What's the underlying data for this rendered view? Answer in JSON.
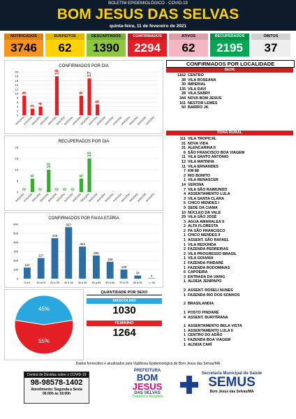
{
  "header": {
    "kicker": "BOLETIM EPIDEMIOLÓGICO - COVID-19",
    "title": "BOM JESUS DAS SELVAS",
    "date": "quinta-feira, 11 de fevereiro de 2021"
  },
  "stats": [
    {
      "label": "NOTIFICADOS",
      "value": "3746",
      "color": "#f7941d",
      "text": "#000"
    },
    {
      "label": "SUSPEITOS",
      "value": "62",
      "color": "#ffd200",
      "text": "#000"
    },
    {
      "label": "DESCARTADOS",
      "value": "1390",
      "color": "#8dc63f",
      "text": "#000"
    },
    {
      "label": "CONFIRMADOS",
      "value": "2294",
      "color": "#e31e24",
      "text": "#fff"
    },
    {
      "label": "ATIVOS",
      "value": "62",
      "color": "#f4b6c2",
      "text": "#000"
    },
    {
      "label": "RECUPERADOS",
      "value": "2195",
      "color": "#00a651",
      "text": "#fff"
    },
    {
      "label": "ÓBITOS",
      "value": "37",
      "color": "#eeeeee",
      "text": "#000"
    }
  ],
  "chart_data": [
    {
      "type": "bar",
      "title": "CONFIRMADOS POR DIA",
      "color": "#e31e24",
      "categories": [
        "26/01/2021",
        "27/01/2021",
        "28/01/2021",
        "29/01/2021",
        "30/01/2021",
        "31/01/2021",
        "01/02/2021",
        "02/02/2021",
        "03/02/2021",
        "04/02/2021",
        "05/02/2021",
        "06/02/2021",
        "07/02/2021",
        "08/02/2021",
        "09/02/2021",
        "10/02/2021",
        "11/02/2021"
      ],
      "values": [
        9,
        3,
        4,
        0,
        18,
        0,
        0,
        9,
        17,
        5,
        0,
        0,
        0,
        0,
        0,
        0,
        0
      ],
      "value_labels": [
        "9",
        "3",
        "4",
        null,
        "18",
        null,
        null,
        "9",
        "17",
        "5",
        null,
        null,
        null,
        null,
        null,
        null,
        null
      ],
      "ylim": [
        0,
        20
      ],
      "yticks": [
        0,
        2,
        4,
        6,
        8,
        10,
        12,
        14,
        16,
        18,
        20
      ],
      "grid": true
    },
    {
      "type": "bar",
      "title": "RECUPERADOS POR DIA",
      "color": "#3aa935",
      "categories": [
        "26/01/2021",
        "27/01/2021",
        "28/01/2021",
        "29/01/2021",
        "30/01/2021",
        "31/01/2021",
        "01/02/2021",
        "02/02/2021",
        "03/02/2021",
        "04/02/2021",
        "05/02/2021",
        "06/02/2021",
        "07/02/2021",
        "08/02/2021",
        "09/02/2021",
        "10/02/2021",
        "11/02/2021"
      ],
      "values": [
        0,
        6,
        0,
        10,
        0,
        0,
        0,
        6,
        15,
        0,
        0,
        0,
        0,
        0,
        0,
        0,
        0
      ],
      "value_labels": [
        "0",
        "6",
        "0",
        "10",
        "0",
        "0",
        "0",
        "6",
        "15",
        null,
        null,
        null,
        null,
        null,
        null,
        null,
        null
      ],
      "ylim": [
        0,
        20
      ],
      "yticks": [
        0,
        5,
        10,
        15,
        20
      ],
      "grid": true
    },
    {
      "type": "bar",
      "title": "CONFIRMADOS POR FAIXA ETÁRIA",
      "color": "#2e6da4",
      "categories": [
        "0 a 9",
        "10 a 19",
        "20 a 29",
        "30 a 39",
        "40 a 49",
        "50 a 59",
        "60 a 69",
        "70 a 79",
        "80 a 89",
        ">= 90"
      ],
      "values": [
        122,
        227,
        445,
        567,
        353,
        255,
        186,
        100,
        34,
        4
      ],
      "ylim": [
        0,
        600
      ],
      "yticks": [
        0,
        100,
        200,
        300,
        400,
        500,
        600
      ],
      "grid": true
    },
    {
      "type": "pie",
      "values": [
        55,
        45
      ],
      "value_labels": [
        "55%",
        "45%"
      ],
      "colors": [
        "#e31e24",
        "#2aa7df"
      ]
    }
  ],
  "sex": {
    "title": "QUANTIDADE POR SEXO",
    "items": [
      {
        "label": "MASCULINO",
        "value": "1030",
        "color": "#2aa7df"
      },
      {
        "label": "FEMININO",
        "value": "1264",
        "color": "#e31e24"
      }
    ]
  },
  "locality": {
    "title": "CONFIRMADOS POR LOCALIDADE",
    "sede_title": "SEDE",
    "sede": [
      {
        "count": "1162",
        "name": "CENTRO"
      },
      {
        "count": "38",
        "name": "VILA ROSEANA"
      },
      {
        "count": "30",
        "name": "IMPERIAL"
      },
      {
        "count": "135",
        "name": "VILA DAVI"
      },
      {
        "count": "28",
        "name": "VILA SABRY"
      },
      {
        "count": "344",
        "name": "NOVA BOM JESUS"
      },
      {
        "count": "161",
        "name": "NESTOR LEMES"
      },
      {
        "count": "50",
        "name": "BAIRRO JK"
      }
    ],
    "rural_title": "ZONA RURAL",
    "rural": [
      [
        {
          "count": "111",
          "name": "VILA TROPICAL"
        },
        {
          "count": "31",
          "name": "NOVA VIDA"
        },
        {
          "count": "31",
          "name": "ALENCARINA II"
        },
        {
          "count": "6",
          "name": "SÃO FRANCISCO BOA VIAGEM"
        },
        {
          "count": "11",
          "name": "VILA SANTO ANTONIO"
        },
        {
          "count": "12",
          "name": "VILA MATINHA"
        },
        {
          "count": "11",
          "name": "VILA ERNANDES"
        },
        {
          "count": "7",
          "name": "KM 88"
        },
        {
          "count": "2",
          "name": "RIO BONITO"
        },
        {
          "count": "1",
          "name": "VILA RENASCER"
        },
        {
          "count": "14",
          "name": "VERONA"
        },
        {
          "count": "7",
          "name": "VILA SÃO RAIMUNDO"
        },
        {
          "count": "4",
          "name": "ASSENTAMENTO LULA"
        },
        {
          "count": "3",
          "name": "VILA SANTA CLARA"
        },
        {
          "count": "5",
          "name": "CHICO MENDES I"
        },
        {
          "count": "9",
          "name": "SEDE DA CIAMA"
        },
        {
          "count": "10",
          "name": "NÚCLEO DA VALE"
        },
        {
          "count": "29",
          "name": "VILA SÃO JOSÉ"
        },
        {
          "count": "3",
          "name": "AGUA AMARALEA II"
        },
        {
          "count": "2",
          "name": "ALTA FLORESTA"
        },
        {
          "count": "2",
          "name": "PA SÃO FRANCISCO"
        },
        {
          "count": "1",
          "name": "CHICO MENDES II"
        },
        {
          "count": "1",
          "name": "ASSENT. SÃO RAFAEL"
        },
        {
          "count": "1",
          "name": "VILA REDONDA"
        },
        {
          "count": "2",
          "name": "FAZENDA PEDREIRAS"
        },
        {
          "count": "2",
          "name": "VILA PROGRESSO BRASIL"
        },
        {
          "count": "1",
          "name": "VILA GOIANIA"
        },
        {
          "count": "1",
          "name": "FAZENDA PINDARÉ"
        },
        {
          "count": "1",
          "name": "FAZENDA RODOMINAS"
        },
        {
          "count": "6",
          "name": "CAPOEIRA"
        },
        {
          "count": "3",
          "name": "ENTRADA DA VARIG"
        },
        {
          "count": "1",
          "name": "ALDEIA JENIPAPO"
        }
      ],
      [
        {
          "count": "2",
          "name": "ASSENT. ROSELI NUNES"
        },
        {
          "count": "1",
          "name": "FAZENDA RIO DOS SONHOS"
        }
      ],
      [
        {
          "count": "2",
          "name": "BRASILANDIA"
        }
      ],
      [
        {
          "count": "1",
          "name": "POSTO PINDARÉ"
        },
        {
          "count": "4",
          "name": "ASSENT. BURITIRANA"
        }
      ],
      [
        {
          "count": "1",
          "name": "ASSENTAMENTO BELA VISTA"
        },
        {
          "count": "1",
          "name": "ASSENTAMENTO LULA II"
        },
        {
          "count": "1",
          "name": "CENTRO DO ADÃO"
        },
        {
          "count": "1",
          "name": "FAZENDA BOA VIAGEM"
        },
        {
          "count": "1",
          "name": "ALDEIA CARÍ"
        }
      ]
    ]
  },
  "footer": {
    "source": "Dados fornecidos e atualizados pela Vigilância Epidemiológica de Bom Jesus das Selvas/MA",
    "help_title": "Central de Dúvidas sobre o COVID-19",
    "phone": "98-98578-1402",
    "hours1": "Atendimento: Segunda a Sexta",
    "hours2": "06:00h às 18:00h",
    "logo_top": "PREFEITURA",
    "logo_1": "BOM",
    "logo_2": "JESUS",
    "logo_3": "DAS SELVAS",
    "logo_slogan": "Trabalho e Respeito",
    "semus_top": "Secretaria Municipal de Saúde",
    "semus": "SEMUS",
    "semus_bottom": "Bom Jesus das Selvas/MA"
  }
}
